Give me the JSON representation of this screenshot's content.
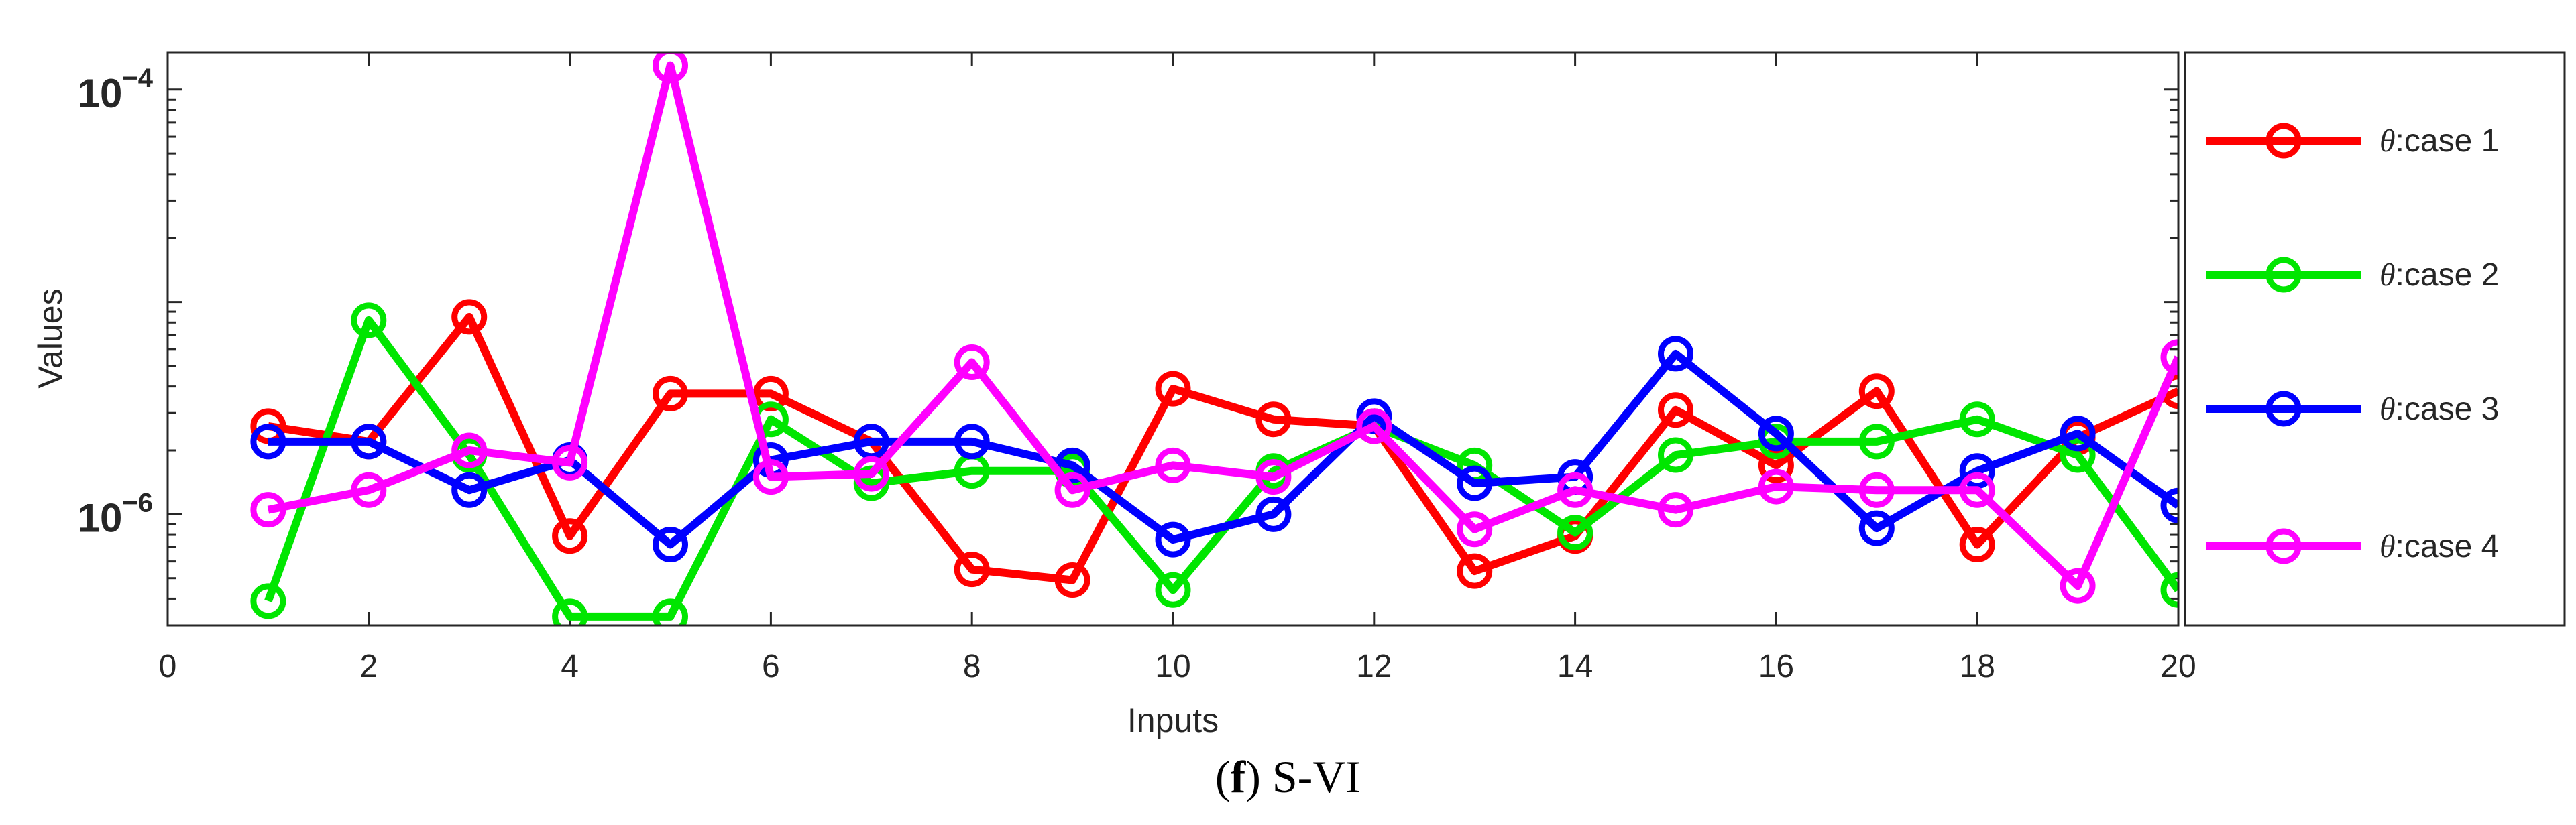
{
  "caption": {
    "prefix": "(",
    "letter": "f",
    "suffix": ") S-VI"
  },
  "chart_data": {
    "type": "line",
    "title": "",
    "xlabel": "Inputs",
    "ylabel": "Values",
    "yscale": "log",
    "xlim": [
      0,
      20
    ],
    "ylim": [
      3e-07,
      0.00015
    ],
    "xticks": [
      0,
      2,
      4,
      6,
      8,
      10,
      12,
      14,
      16,
      18,
      20
    ],
    "yticks": [
      {
        "value": 1e-06,
        "base": "10",
        "exponent": "−6"
      },
      {
        "value": 0.0001,
        "base": "10",
        "exponent": "−4"
      }
    ],
    "x": [
      1,
      2,
      3,
      4,
      5,
      6,
      7,
      8,
      9,
      10,
      11,
      12,
      13,
      14,
      15,
      16,
      17,
      18,
      19,
      20
    ],
    "legend_position": "right-outside",
    "series": [
      {
        "name": "θ:case 1",
        "theta": "θ",
        "label": ":case 1",
        "color": "#ff0000",
        "values": [
          2.6e-06,
          2.2e-06,
          8.5e-06,
          7.9e-07,
          3.7e-06,
          3.7e-06,
          2.2e-06,
          5.5e-07,
          4.9e-07,
          3.9e-06,
          2.8e-06,
          2.6e-06,
          5.4e-07,
          7.9e-07,
          3.1e-06,
          1.7e-06,
          3.8e-06,
          7.2e-07,
          2.3e-06,
          3.8e-06
        ]
      },
      {
        "name": "θ:case 2",
        "theta": "θ",
        "label": ":case 2",
        "color": "#00e600",
        "values": [
          3.9e-07,
          8.2e-06,
          1.9e-06,
          3.3e-07,
          3.3e-07,
          2.8e-06,
          1.4e-06,
          1.6e-06,
          1.6e-06,
          4.4e-07,
          1.6e-06,
          2.6e-06,
          1.7e-06,
          8.2e-07,
          1.9e-06,
          2.2e-06,
          2.2e-06,
          2.8e-06,
          1.9e-06,
          4.4e-07
        ]
      },
      {
        "name": "θ:case 3",
        "theta": "θ",
        "label": ":case 3",
        "color": "#0000ff",
        "values": [
          2.2e-06,
          2.2e-06,
          1.3e-06,
          1.8e-06,
          7.2e-07,
          1.8e-06,
          2.2e-06,
          2.2e-06,
          1.7e-06,
          7.6e-07,
          1e-06,
          2.9e-06,
          1.4e-06,
          1.5e-06,
          5.7e-06,
          2.4e-06,
          8.6e-07,
          1.6e-06,
          2.4e-06,
          1.1e-06
        ]
      },
      {
        "name": "θ:case 4",
        "theta": "θ",
        "label": ":case 4",
        "color": "#ff00ff",
        "values": [
          1.05e-06,
          1.3e-06,
          2e-06,
          1.75e-06,
          0.00013,
          1.5e-06,
          1.55e-06,
          5.2e-06,
          1.3e-06,
          1.7e-06,
          1.5e-06,
          2.6e-06,
          8.5e-07,
          1.3e-06,
          1.05e-06,
          1.35e-06,
          1.3e-06,
          1.3e-06,
          4.6e-07,
          5.5e-06
        ]
      }
    ]
  }
}
